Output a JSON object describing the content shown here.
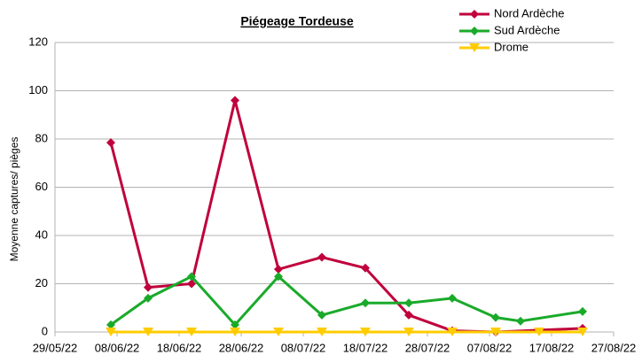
{
  "chart_data": {
    "type": "line",
    "title": "Piégeage Tordeuse",
    "y_label": "Moyenne captures/ pièges",
    "xlim": [
      "2022-05-29",
      "2022-08-27"
    ],
    "xticks": [
      {
        "value": "2022-05-29",
        "label": "29/05/22"
      },
      {
        "value": "2022-06-08",
        "label": "08/06/22"
      },
      {
        "value": "2022-06-18",
        "label": "18/06/22"
      },
      {
        "value": "2022-06-28",
        "label": "28/06/22"
      },
      {
        "value": "2022-07-08",
        "label": "08/07/22"
      },
      {
        "value": "2022-07-18",
        "label": "18/07/22"
      },
      {
        "value": "2022-07-28",
        "label": "28/07/22"
      },
      {
        "value": "2022-08-07",
        "label": "07/08/22"
      },
      {
        "value": "2022-08-17",
        "label": "17/08/22"
      },
      {
        "value": "2022-08-27",
        "label": "27/08/22"
      }
    ],
    "ylim": [
      0,
      120
    ],
    "yticks": [
      0,
      20,
      40,
      60,
      80,
      100,
      120
    ],
    "grid": true,
    "series": [
      {
        "name": "Nord Ardèche",
        "color": "#c0003c",
        "marker": "diamond",
        "x": [
          "2022-06-07",
          "2022-06-13",
          "2022-06-20",
          "2022-06-27",
          "2022-07-04",
          "2022-07-11",
          "2022-07-18",
          "2022-07-25",
          "2022-08-01",
          "2022-08-08",
          "2022-08-22"
        ],
        "values": [
          78.5,
          18.5,
          20,
          96,
          26,
          31,
          26.5,
          7,
          0.5,
          0,
          1.5
        ]
      },
      {
        "name": "Sud Ardèche",
        "color": "#1aaa2a",
        "marker": "diamond",
        "x": [
          "2022-06-07",
          "2022-06-13",
          "2022-06-20",
          "2022-06-27",
          "2022-07-04",
          "2022-07-11",
          "2022-07-18",
          "2022-07-25",
          "2022-08-01",
          "2022-08-08",
          "2022-08-12",
          "2022-08-22"
        ],
        "values": [
          3,
          14,
          23,
          3,
          23,
          7,
          12,
          12,
          14,
          6,
          4.5,
          8.5
        ]
      },
      {
        "name": "Drome",
        "color": "#ffcc00",
        "marker": "triangle-down",
        "x": [
          "2022-06-07",
          "2022-06-13",
          "2022-06-20",
          "2022-06-27",
          "2022-07-04",
          "2022-07-11",
          "2022-07-18",
          "2022-07-25",
          "2022-08-01",
          "2022-08-08",
          "2022-08-15",
          "2022-08-22"
        ],
        "values": [
          0,
          0,
          0,
          0,
          0,
          0,
          0,
          0,
          0,
          0,
          0,
          0
        ]
      }
    ]
  }
}
